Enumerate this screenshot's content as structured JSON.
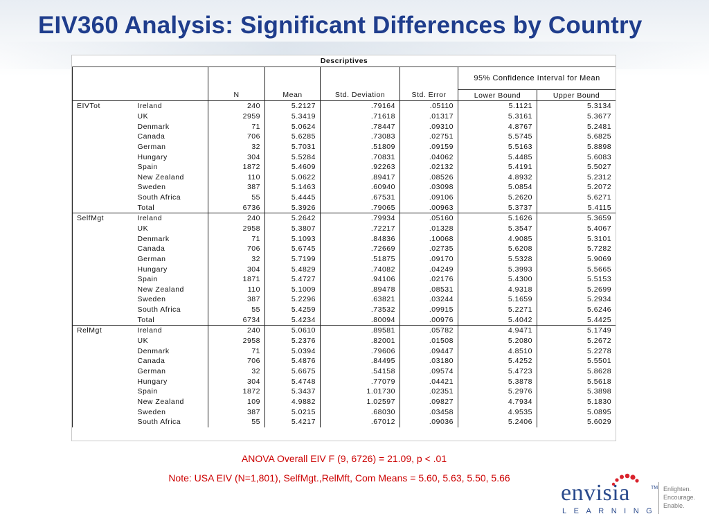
{
  "slide_title": "EIV360 Analysis: Significant Differences by Country",
  "table": {
    "caption": "Descriptives",
    "headers": {
      "n": "N",
      "mean": "Mean",
      "std_dev": "Std. Deviation",
      "std_err": "Std. Error",
      "ci_group": "95% Confidence Interval for Mean",
      "lower": "Lower Bound",
      "upper": "Upper Bound"
    },
    "groups": [
      {
        "variable": "EIVTot",
        "rows": [
          [
            "Ireland",
            "240",
            "5.2127",
            ".79164",
            ".05110",
            "5.1121",
            "5.3134"
          ],
          [
            "UK",
            "2959",
            "5.3419",
            ".71618",
            ".01317",
            "5.3161",
            "5.3677"
          ],
          [
            "Denmark",
            "71",
            "5.0624",
            ".78447",
            ".09310",
            "4.8767",
            "5.2481"
          ],
          [
            "Canada",
            "706",
            "5.6285",
            ".73083",
            ".02751",
            "5.5745",
            "5.6825"
          ],
          [
            "German",
            "32",
            "5.7031",
            ".51809",
            ".09159",
            "5.5163",
            "5.8898"
          ],
          [
            "Hungary",
            "304",
            "5.5284",
            ".70831",
            ".04062",
            "5.4485",
            "5.6083"
          ],
          [
            "Spain",
            "1872",
            "5.4609",
            ".92263",
            ".02132",
            "5.4191",
            "5.5027"
          ],
          [
            "New Zealand",
            "110",
            "5.0622",
            ".89417",
            ".08526",
            "4.8932",
            "5.2312"
          ],
          [
            "Sweden",
            "387",
            "5.1463",
            ".60940",
            ".03098",
            "5.0854",
            "5.2072"
          ],
          [
            "South Africa",
            "55",
            "5.4445",
            ".67531",
            ".09106",
            "5.2620",
            "5.6271"
          ],
          [
            "Total",
            "6736",
            "5.3926",
            ".79065",
            ".00963",
            "5.3737",
            "5.4115"
          ]
        ]
      },
      {
        "variable": "SelfMgt",
        "rows": [
          [
            "Ireland",
            "240",
            "5.2642",
            ".79934",
            ".05160",
            "5.1626",
            "5.3659"
          ],
          [
            "UK",
            "2958",
            "5.3807",
            ".72217",
            ".01328",
            "5.3547",
            "5.4067"
          ],
          [
            "Denmark",
            "71",
            "5.1093",
            ".84836",
            ".10068",
            "4.9085",
            "5.3101"
          ],
          [
            "Canada",
            "706",
            "5.6745",
            ".72669",
            ".02735",
            "5.6208",
            "5.7282"
          ],
          [
            "German",
            "32",
            "5.7199",
            ".51875",
            ".09170",
            "5.5328",
            "5.9069"
          ],
          [
            "Hungary",
            "304",
            "5.4829",
            ".74082",
            ".04249",
            "5.3993",
            "5.5665"
          ],
          [
            "Spain",
            "1871",
            "5.4727",
            ".94106",
            ".02176",
            "5.4300",
            "5.5153"
          ],
          [
            "New Zealand",
            "110",
            "5.1009",
            ".89478",
            ".08531",
            "4.9318",
            "5.2699"
          ],
          [
            "Sweden",
            "387",
            "5.2296",
            ".63821",
            ".03244",
            "5.1659",
            "5.2934"
          ],
          [
            "South Africa",
            "55",
            "5.4259",
            ".73532",
            ".09915",
            "5.2271",
            "5.6246"
          ],
          [
            "Total",
            "6734",
            "5.4234",
            ".80094",
            ".00976",
            "5.4042",
            "5.4425"
          ]
        ]
      },
      {
        "variable": "RelMgt",
        "rows": [
          [
            "Ireland",
            "240",
            "5.0610",
            ".89581",
            ".05782",
            "4.9471",
            "5.1749"
          ],
          [
            "UK",
            "2958",
            "5.2376",
            ".82001",
            ".01508",
            "5.2080",
            "5.2672"
          ],
          [
            "Denmark",
            "71",
            "5.0394",
            ".79606",
            ".09447",
            "4.8510",
            "5.2278"
          ],
          [
            "Canada",
            "706",
            "5.4876",
            ".84495",
            ".03180",
            "5.4252",
            "5.5501"
          ],
          [
            "German",
            "32",
            "5.6675",
            ".54158",
            ".09574",
            "5.4723",
            "5.8628"
          ],
          [
            "Hungary",
            "304",
            "5.4748",
            ".77079",
            ".04421",
            "5.3878",
            "5.5618"
          ],
          [
            "Spain",
            "1872",
            "5.3437",
            "1.01730",
            ".02351",
            "5.2976",
            "5.3898"
          ],
          [
            "New Zealand",
            "109",
            "4.9882",
            "1.02597",
            ".09827",
            "4.7934",
            "5.1830"
          ],
          [
            "Sweden",
            "387",
            "5.0215",
            ".68030",
            ".03458",
            "4.9535",
            "5.0895"
          ],
          [
            "South Africa",
            "55",
            "5.4217",
            ".67012",
            ".09036",
            "5.2406",
            "5.6029"
          ]
        ]
      }
    ]
  },
  "anova_text": "ANOVA Overall EIV F (9, 6726) = 21.09, p < .01",
  "note_text": "Note: USA EIV (N=1,801), SelfMgt.,RelMft, Com Means = 5.60, 5.63, 5.50, 5.66",
  "logo": {
    "word": "envisia",
    "tm": "TM",
    "sub": "LEARNING",
    "tagline": [
      "Enlighten.",
      "Encourage.",
      "Enable."
    ],
    "icon": "red-dots-icon"
  },
  "colors": {
    "title": "#1f3d8c",
    "note": "#cc0000",
    "logo": "#2a4a8c",
    "logo_dots": "#d9232d"
  }
}
